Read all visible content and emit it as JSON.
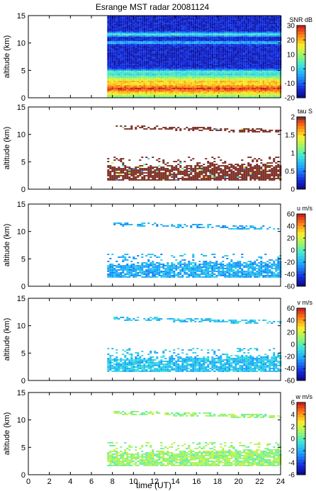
{
  "figure": {
    "title": "Esrange MST radar 20081124",
    "xlabel": "time (UT)",
    "ylabel": "altitude (km)"
  },
  "chart_data": [
    {
      "type": "heatmap",
      "name": "snr",
      "xlim": [
        0,
        24
      ],
      "ylim": [
        0,
        15
      ],
      "xticks": [
        "0",
        "2",
        "4",
        "6",
        "8",
        "10",
        "12",
        "14",
        "16",
        "18",
        "20",
        "22",
        "24"
      ],
      "yticks": [
        "0",
        "5",
        "10",
        "15"
      ],
      "colorbar": {
        "label": "SNR dB",
        "range": [
          -20,
          30
        ],
        "ticks": [
          "30",
          "20",
          "10",
          "0",
          "-10",
          "-20"
        ]
      },
      "data_start_time": 7.5,
      "description_values": {
        "background_snr": -15,
        "layers": [
          {
            "alt": 11.7,
            "snr": 5
          },
          {
            "alt": 10.2,
            "snr": 0
          },
          {
            "alt": 4.8,
            "snr": 8
          },
          {
            "alt": 3.0,
            "snr": 20
          },
          {
            "alt": 1.8,
            "snr": 28
          }
        ]
      }
    },
    {
      "type": "heatmap",
      "name": "tau",
      "xlim": [
        0,
        24
      ],
      "ylim": [
        0,
        15
      ],
      "xticks": [
        "0",
        "2",
        "4",
        "6",
        "8",
        "10",
        "12",
        "14",
        "16",
        "18",
        "20",
        "22",
        "24"
      ],
      "yticks": [
        "0",
        "5",
        "10",
        "15"
      ],
      "colorbar": {
        "label": "tau S",
        "range": [
          0,
          2
        ],
        "ticks": [
          "2",
          "1.5",
          "1",
          "0.5",
          "0"
        ]
      },
      "dominant_value": 2.0
    },
    {
      "type": "heatmap",
      "name": "u",
      "xlim": [
        0,
        24
      ],
      "ylim": [
        0,
        15
      ],
      "xticks": [
        "0",
        "2",
        "4",
        "6",
        "8",
        "10",
        "12",
        "14",
        "16",
        "18",
        "20",
        "22",
        "24"
      ],
      "yticks": [
        "0",
        "5",
        "10",
        "15"
      ],
      "colorbar": {
        "label": "u m/s",
        "range": [
          -60,
          60
        ],
        "ticks": [
          "60",
          "40",
          "20",
          "0",
          "-20",
          "-40",
          "-60"
        ]
      },
      "dominant_value": -20
    },
    {
      "type": "heatmap",
      "name": "v",
      "xlim": [
        0,
        24
      ],
      "ylim": [
        0,
        15
      ],
      "xticks": [
        "0",
        "2",
        "4",
        "6",
        "8",
        "10",
        "12",
        "14",
        "16",
        "18",
        "20",
        "22",
        "24"
      ],
      "yticks": [
        "0",
        "5",
        "10",
        "15"
      ],
      "colorbar": {
        "label": "v m/s",
        "range": [
          -60,
          60
        ],
        "ticks": [
          "60",
          "40",
          "20",
          "0",
          "-20",
          "-40",
          "-60"
        ]
      },
      "dominant_value": -15
    },
    {
      "type": "heatmap",
      "name": "w",
      "xlim": [
        0,
        24
      ],
      "ylim": [
        0,
        15
      ],
      "xticks": [
        "0",
        "2",
        "4",
        "6",
        "8",
        "10",
        "12",
        "14",
        "16",
        "18",
        "20",
        "22",
        "24"
      ],
      "yticks": [
        "0",
        "5",
        "10",
        "15"
      ],
      "colorbar": {
        "label": "w m/s",
        "range": [
          -6,
          6
        ],
        "ticks": [
          "6",
          "4",
          "2",
          "0",
          "-2",
          "-4",
          "-6"
        ]
      },
      "dominant_value": 1
    }
  ]
}
